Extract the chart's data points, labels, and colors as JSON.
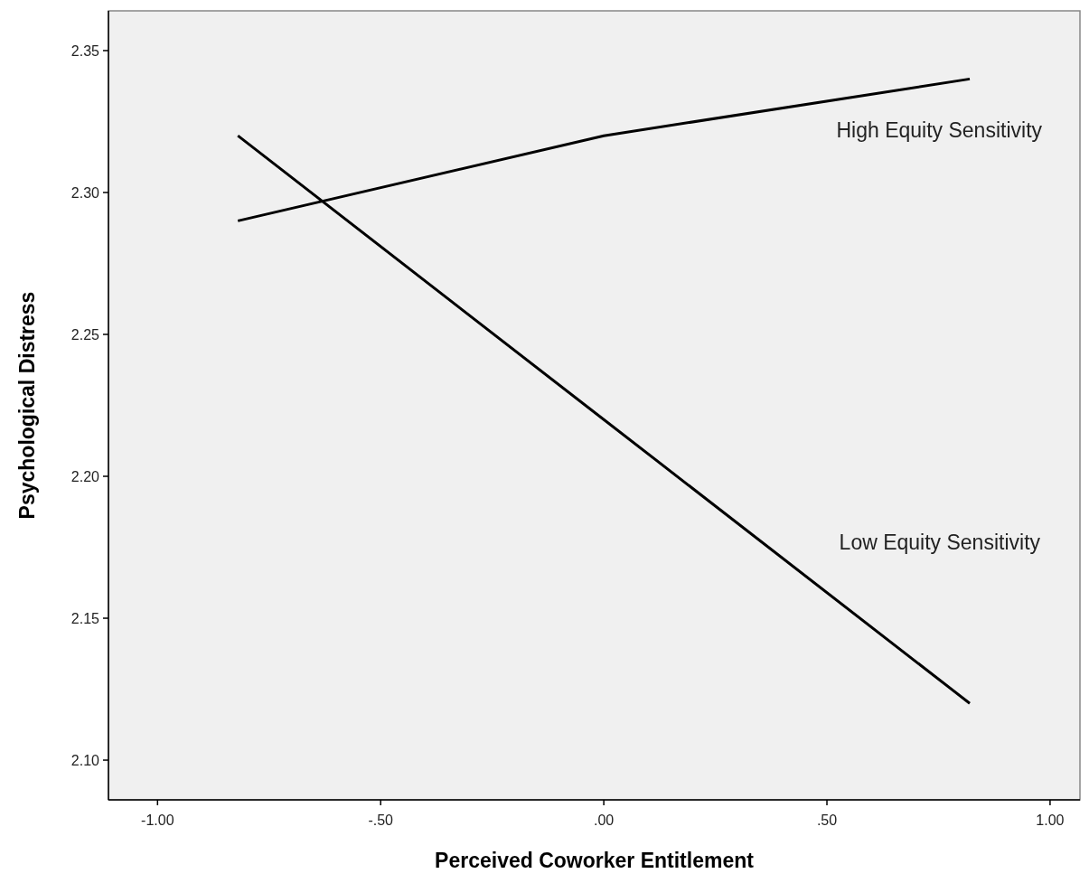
{
  "chart_data": {
    "type": "line",
    "xlabel": "Perceived Coworker Entitlement",
    "ylabel": "Psychological Distress",
    "x": [
      -0.82,
      0,
      0.82
    ],
    "series": [
      {
        "name": "High Equity Sensitivity",
        "color": "#000000",
        "values": [
          2.29,
          2.32,
          2.34
        ]
      },
      {
        "name": "Low Equity Sensitivity",
        "color": "#000000",
        "values": [
          2.32,
          2.22,
          2.12
        ]
      }
    ],
    "xlim": [
      -1.11,
      1.067
    ],
    "ylim": [
      2.086,
      2.364
    ],
    "xticks": [
      {
        "value": -1,
        "label": "-1.00"
      },
      {
        "value": -0.5,
        "label": "-.50"
      },
      {
        "value": 0,
        "label": ".00"
      },
      {
        "value": 0.5,
        "label": ".50"
      },
      {
        "value": 1,
        "label": "1.00"
      }
    ],
    "yticks": [
      {
        "value": 2.1,
        "label": "2.10"
      },
      {
        "value": 2.15,
        "label": "2.15"
      },
      {
        "value": 2.2,
        "label": "2.20"
      },
      {
        "value": 2.25,
        "label": "2.25"
      },
      {
        "value": 2.3,
        "label": "2.30"
      },
      {
        "value": 2.35,
        "label": "2.35"
      }
    ],
    "grid": false,
    "legend": false,
    "marker": "none",
    "line_style": "solid"
  }
}
